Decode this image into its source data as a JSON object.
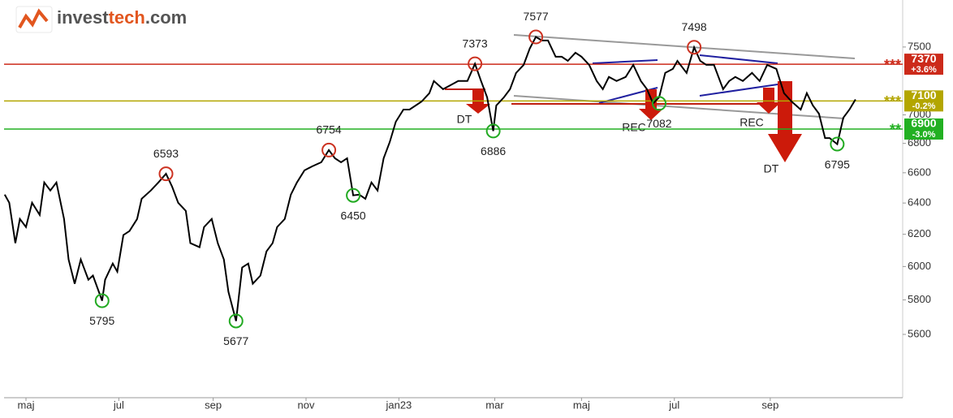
{
  "logo": {
    "parts": [
      "invest",
      "tech",
      ".com"
    ]
  },
  "chart_data": {
    "type": "line",
    "log_scale": true,
    "xlim": [
      -14.4,
      576
    ],
    "ylim": [
      5251,
      7867
    ],
    "xticks": [
      {
        "value": 0,
        "label": "maj"
      },
      {
        "value": 61,
        "label": "jul"
      },
      {
        "value": 123,
        "label": "sep"
      },
      {
        "value": 184,
        "label": "nov"
      },
      {
        "value": 245,
        "label": "jan23"
      },
      {
        "value": 308,
        "label": "mar"
      },
      {
        "value": 365,
        "label": "maj"
      },
      {
        "value": 426,
        "label": "jul"
      },
      {
        "value": 489,
        "label": "sep"
      }
    ],
    "yticks": [
      5600,
      5800,
      6000,
      6200,
      6400,
      6600,
      6800,
      7000,
      7500
    ],
    "series": [
      {
        "color": "#000000",
        "x": [
          -14,
          -11,
          -7,
          -4,
          0,
          4,
          9,
          12,
          16,
          20,
          25,
          28,
          32,
          36,
          41,
          44,
          50,
          52,
          57,
          60,
          64,
          68,
          73,
          76,
          82,
          87,
          92,
          96,
          100,
          105,
          108,
          114,
          117,
          122,
          126,
          130,
          133,
          138,
          142,
          146,
          149,
          154,
          158,
          162,
          165,
          170,
          174,
          178,
          183,
          188,
          194,
          199,
          203,
          207,
          211,
          215,
          219,
          223,
          227,
          231,
          235,
          239,
          243,
          248,
          252,
          256,
          260,
          265,
          268,
          274,
          279,
          284,
          290,
          295,
          299,
          303,
          307,
          309,
          314,
          318,
          322,
          327,
          331,
          335,
          339,
          343,
          348,
          352,
          356,
          361,
          365,
          370,
          375,
          379,
          383,
          388,
          394,
          399,
          404,
          408,
          412,
          416,
          420,
          425,
          428,
          434,
          439,
          443,
          447,
          452,
          458,
          462,
          466,
          471,
          477,
          482,
          487,
          493,
          498,
          503,
          509,
          513,
          517,
          521,
          525,
          528,
          533,
          537,
          541,
          545
        ],
        "values": [
          6455,
          6402,
          6144,
          6297,
          6246,
          6402,
          6323,
          6535,
          6482,
          6535,
          6297,
          6043,
          5896,
          6043,
          5920,
          5945,
          5795,
          5920,
          6018,
          5969,
          6195,
          6220,
          6297,
          6428,
          6482,
          6535,
          6593,
          6508,
          6402,
          6349,
          6144,
          6119,
          6246,
          6297,
          6144,
          6043,
          5848,
          5677,
          5994,
          6018,
          5896,
          5945,
          6093,
          6144,
          6246,
          6297,
          6455,
          6535,
          6616,
          6643,
          6671,
          6754,
          6698,
          6671,
          6698,
          6450,
          6455,
          6428,
          6535,
          6482,
          6698,
          6809,
          6951,
          7038,
          7038,
          7067,
          7096,
          7156,
          7245,
          7185,
          7215,
          7245,
          7245,
          7373,
          7245,
          7126,
          6886,
          7067,
          7126,
          7185,
          7305,
          7365,
          7488,
          7577,
          7550,
          7550,
          7426,
          7426,
          7395,
          7457,
          7426,
          7365,
          7245,
          7185,
          7275,
          7245,
          7275,
          7365,
          7245,
          7185,
          7082,
          7126,
          7305,
          7335,
          7395,
          7305,
          7498,
          7395,
          7365,
          7365,
          7185,
          7245,
          7275,
          7245,
          7305,
          7245,
          7365,
          7335,
          7156,
          7096,
          7038,
          7156,
          7067,
          7008,
          6837,
          6837,
          6795,
          6980,
          7038,
          7111
        ]
      }
    ],
    "annotations": [
      {
        "x": 50,
        "value": 5795,
        "color": "#22aa22"
      },
      {
        "x": 92,
        "value": 6593,
        "color": "#cc3322"
      },
      {
        "x": 138,
        "value": 5677,
        "color": "#22aa22"
      },
      {
        "x": 199,
        "value": 6754,
        "color": "#cc3322"
      },
      {
        "x": 215,
        "value": 6450,
        "color": "#22aa22"
      },
      {
        "x": 295,
        "value": 7373,
        "color": "#cc3322"
      },
      {
        "x": 307,
        "value": 6886,
        "color": "#22aa22"
      },
      {
        "x": 335,
        "value": 7577,
        "color": "#cc3322"
      },
      {
        "x": 416,
        "value": 7082,
        "color": "#22aa22"
      },
      {
        "x": 439,
        "value": 7498,
        "color": "#cc3322"
      },
      {
        "x": 533,
        "value": 6795,
        "color": "#22aa22"
      }
    ],
    "levels": [
      {
        "value": 7370,
        "change": "+3.6%",
        "stars": "***",
        "color": "#cc2a1a"
      },
      {
        "value": 7100,
        "change": "-0.2%",
        "stars": "***",
        "color": "#b3a600"
      },
      {
        "value": 6900,
        "change": "-3.0%",
        "stars": "**",
        "color": "#22b022"
      }
    ],
    "signals": [
      "DT",
      "REC",
      "REC",
      "DT"
    ]
  }
}
